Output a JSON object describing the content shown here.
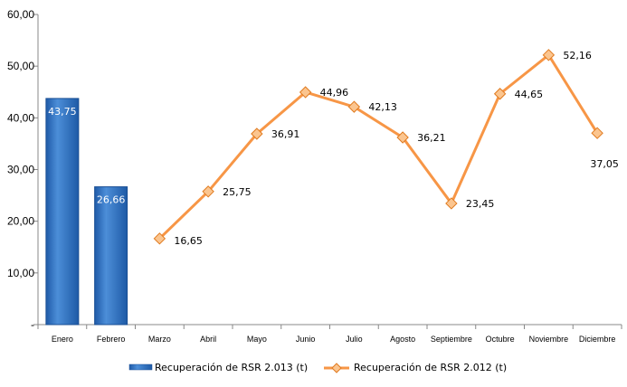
{
  "chart_data": {
    "type": "bar",
    "categories": [
      "Enero",
      "Febrero",
      "Marzo",
      "Abril",
      "Mayo",
      "Junio",
      "Julio",
      "Agosto",
      "Septiembre",
      "Octubre",
      "Noviembre",
      "Diciembre"
    ],
    "series": [
      {
        "name": "Recuperación de RSR 2.013 (t)",
        "type": "bar",
        "color": "#2E6FC0",
        "values": [
          43.75,
          26.66,
          null,
          null,
          null,
          null,
          null,
          null,
          null,
          null,
          null,
          null
        ],
        "labels": [
          "43,75",
          "26,66",
          "",
          "",
          "",
          "",
          "",
          "",
          "",
          "",
          "",
          ""
        ]
      },
      {
        "name": "Recuperación de RSR 2.012 (t)",
        "type": "line",
        "color": "#F79646",
        "values": [
          null,
          null,
          16.65,
          25.75,
          36.91,
          44.96,
          42.13,
          36.21,
          23.45,
          44.65,
          52.16,
          37.05
        ],
        "labels": [
          "",
          "",
          "16,65",
          "25,75",
          "36,91",
          "44,96",
          "42,13",
          "36,21",
          "23,45",
          "44,65",
          "52,16",
          "37,05"
        ]
      }
    ],
    "ylim": [
      0,
      60
    ],
    "yticks": [
      0,
      10,
      20,
      30,
      40,
      50,
      60
    ],
    "ytick_labels": [
      "-",
      "10,00",
      "20,00",
      "30,00",
      "40,00",
      "50,00",
      "60,00"
    ],
    "grid": false,
    "legend": "bottom",
    "xlabel": "",
    "ylabel": "",
    "title": ""
  }
}
